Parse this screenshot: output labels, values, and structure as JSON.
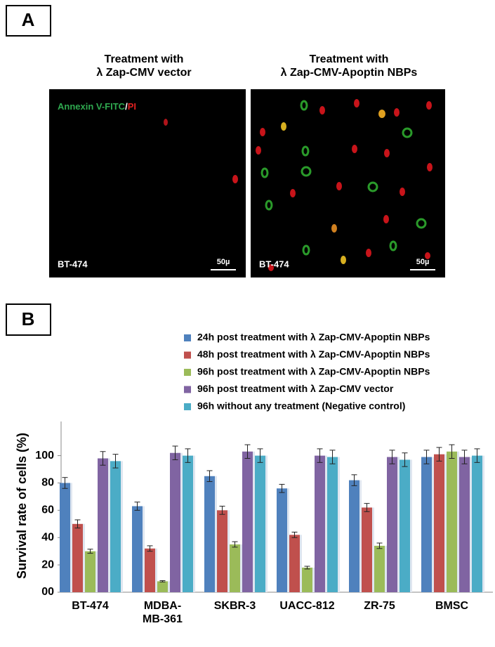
{
  "panel_a": {
    "label": "A",
    "images": [
      {
        "title_lines": [
          "Treatment with",
          "λ Zap-CMV vector"
        ],
        "cell_line": "BT-474",
        "scale": "50µ"
      },
      {
        "title_lines": [
          "Treatment with",
          "λ Zap-CMV-Apoptin NBPs"
        ],
        "cell_line": "BT-474",
        "scale": "50µ"
      }
    ],
    "stain": [
      "Annexin V-FITC",
      "/",
      "PI"
    ]
  },
  "panel_b_label": "B",
  "chart_data": {
    "type": "bar",
    "ylabel": "Survival rate of cells (%)",
    "categories": [
      "BT-474",
      "MDBA-\nMB-361",
      "SKBR-3",
      "UACC-812",
      "ZR-75",
      "BMSC"
    ],
    "series": [
      {
        "name": "24h post treatment with  λ Zap-CMV-Apoptin NBPs",
        "color": "#4f81bd",
        "values": [
          80,
          63,
          85,
          76,
          82,
          99
        ],
        "errors": [
          4,
          3,
          4,
          3,
          4,
          5
        ]
      },
      {
        "name": "48h post treatment with  λ Zap-CMV-Apoptin NBPs",
        "color": "#c0504d",
        "values": [
          50,
          32,
          60,
          42,
          62,
          101
        ],
        "errors": [
          3,
          2,
          3,
          2,
          3,
          5
        ]
      },
      {
        "name": "96h post treatment with  λ Zap-CMV-Apoptin NBPs",
        "color": "#9bbb59",
        "values": [
          30,
          8,
          35,
          18,
          34,
          103
        ],
        "errors": [
          1.5,
          0.5,
          2,
          1,
          2,
          5
        ]
      },
      {
        "name": "96h post treatment with  λ Zap-CMV vector",
        "color": "#8064a2",
        "values": [
          98,
          102,
          103,
          100,
          99,
          99
        ],
        "errors": [
          5,
          5,
          5,
          5,
          5,
          5
        ]
      },
      {
        "name": "96h without any treatment (Negative control)",
        "color": "#4bacc6",
        "values": [
          96,
          100,
          100,
          99,
          97,
          100
        ],
        "errors": [
          5,
          5,
          5,
          5,
          5,
          5
        ]
      }
    ],
    "ylim": [
      0,
      125
    ],
    "yticks": [
      {
        "value": 0,
        "label": "00"
      },
      20,
      40,
      60,
      80,
      100
    ],
    "grid": false
  }
}
